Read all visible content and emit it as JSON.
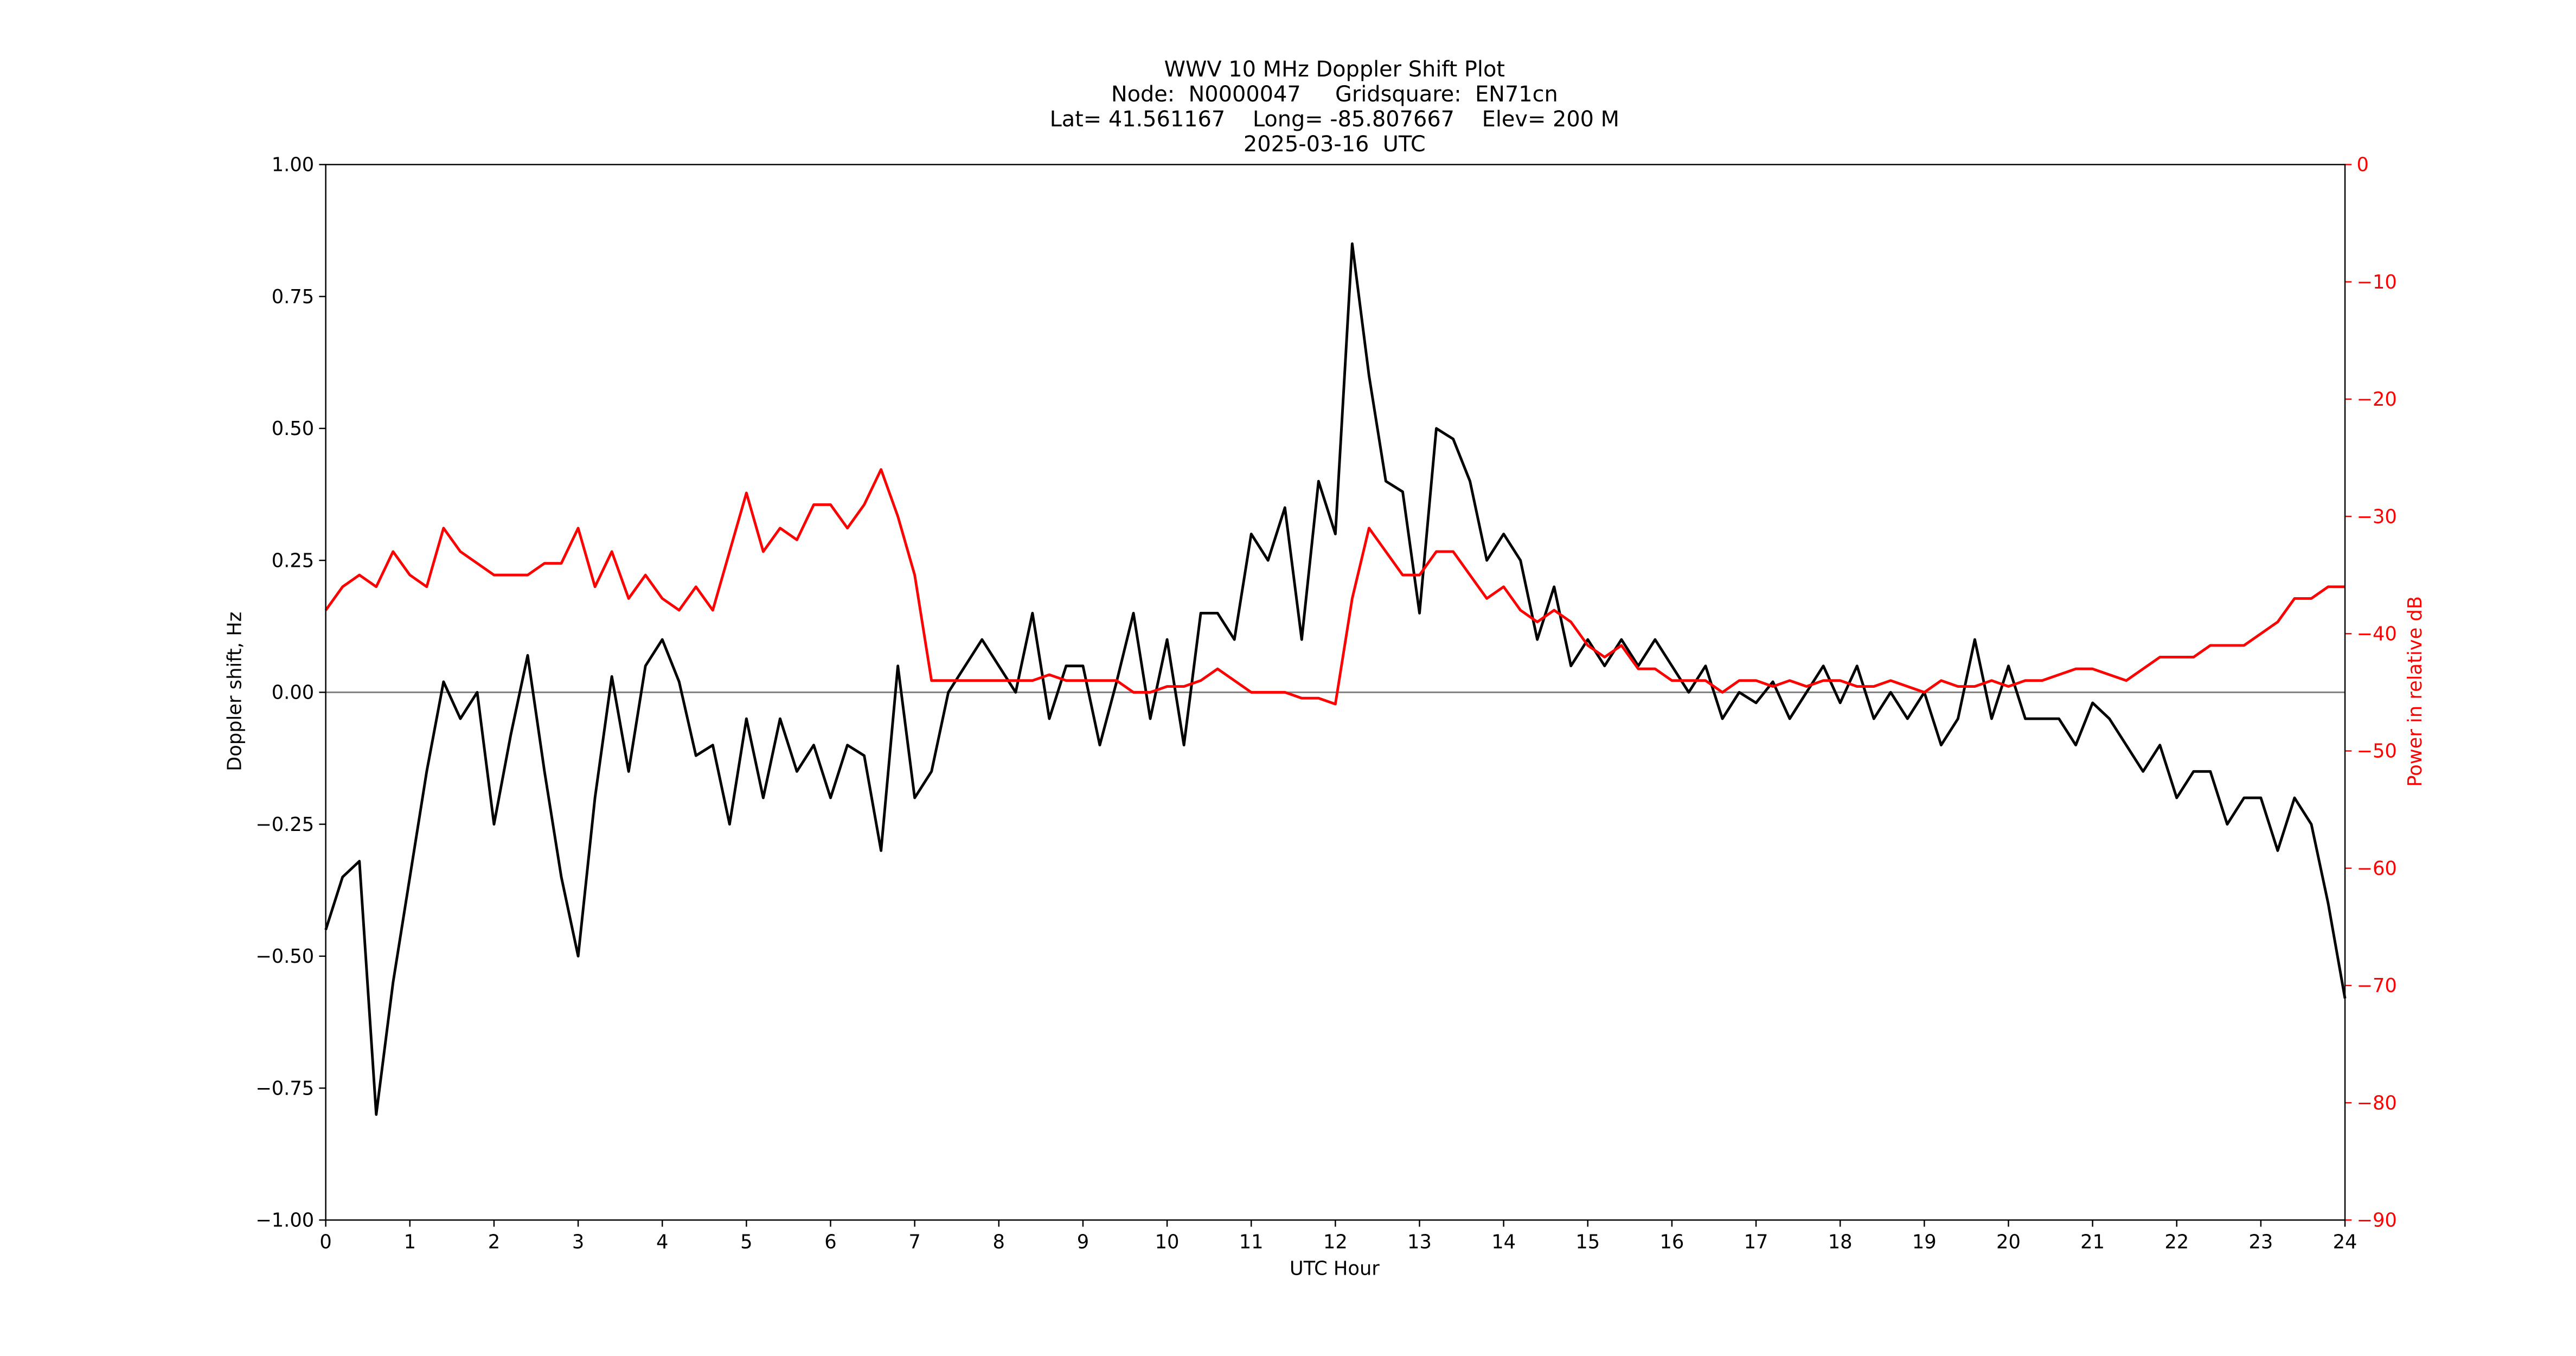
{
  "chart_data": {
    "type": "line",
    "title": [
      "WWV 10 MHz Doppler Shift Plot",
      "Node:  N0000047     Gridsquare:  EN71cn",
      "Lat= 41.561167    Long= -85.807667    Elev= 200 M",
      "2025-03-16  UTC"
    ],
    "x_label": "UTC Hour",
    "y_label": "Doppler shift, Hz",
    "y2_label": "Power in relative dB",
    "y2_color": "#ff0000",
    "xlim": [
      0,
      24
    ],
    "xticks": [
      0,
      1,
      2,
      3,
      4,
      5,
      6,
      7,
      8,
      9,
      10,
      11,
      12,
      13,
      14,
      15,
      16,
      17,
      18,
      19,
      20,
      21,
      22,
      23,
      24
    ],
    "ylim": [
      -1,
      1
    ],
    "yticks": [
      {
        "value": -1,
        "label": "−1.00"
      },
      {
        "value": -0.75,
        "label": "−0.75"
      },
      {
        "value": -0.5,
        "label": "−0.50"
      },
      {
        "value": -0.25,
        "label": "−0.25"
      },
      {
        "value": 0,
        "label": "0.00"
      },
      {
        "value": 0.25,
        "label": "0.25"
      },
      {
        "value": 0.5,
        "label": "0.50"
      },
      {
        "value": 0.75,
        "label": "0.75"
      },
      {
        "value": 1,
        "label": "1.00"
      }
    ],
    "y2lim": [
      -90,
      0
    ],
    "y2ticks": [
      {
        "value": -90,
        "label": "−90"
      },
      {
        "value": -80,
        "label": "−80"
      },
      {
        "value": -70,
        "label": "−70"
      },
      {
        "value": -60,
        "label": "−60"
      },
      {
        "value": -50,
        "label": "−50"
      },
      {
        "value": -40,
        "label": "−40"
      },
      {
        "value": -30,
        "label": "−30"
      },
      {
        "value": -20,
        "label": "−20"
      },
      {
        "value": -10,
        "label": "−10"
      },
      0
    ],
    "x": [
      0,
      0.2,
      0.4,
      0.6,
      0.8,
      1,
      1.2,
      1.4,
      1.6,
      1.8,
      2,
      2.2,
      2.4,
      2.6,
      2.8,
      3,
      3.2,
      3.4,
      3.6,
      3.8,
      4,
      4.2,
      4.4,
      4.6,
      4.8,
      5,
      5.2,
      5.4,
      5.6,
      5.8,
      6,
      6.2,
      6.4,
      6.6,
      6.8,
      7,
      7.2,
      7.4,
      7.6,
      7.8,
      8,
      8.2,
      8.4,
      8.6,
      8.8,
      9,
      9.2,
      9.4,
      9.6,
      9.8,
      10,
      10.2,
      10.4,
      10.6,
      10.8,
      11,
      11.2,
      11.4,
      11.6,
      11.8,
      12,
      12.2,
      12.4,
      12.6,
      12.8,
      13,
      13.2,
      13.4,
      13.6,
      13.8,
      14,
      14.2,
      14.4,
      14.6,
      14.8,
      15,
      15.2,
      15.4,
      15.6,
      15.8,
      16,
      16.2,
      16.4,
      16.6,
      16.8,
      17,
      17.2,
      17.4,
      17.6,
      17.8,
      18,
      18.2,
      18.4,
      18.6,
      18.8,
      19,
      19.2,
      19.4,
      19.6,
      19.8,
      20,
      20.2,
      20.4,
      20.6,
      20.8,
      21,
      21.2,
      21.4,
      21.6,
      21.8,
      22,
      22.2,
      22.4,
      22.6,
      22.8,
      23,
      23.2,
      23.4,
      23.6,
      23.8,
      24
    ],
    "series": [
      {
        "color": "#000000",
        "values": [
          -0.45,
          -0.35,
          -0.32,
          -0.8,
          -0.55,
          -0.35,
          -0.15,
          0.02,
          -0.05,
          0.0,
          -0.25,
          -0.08,
          0.07,
          -0.15,
          -0.35,
          -0.5,
          -0.2,
          0.03,
          -0.15,
          0.05,
          0.1,
          0.02,
          -0.12,
          -0.1,
          -0.25,
          -0.05,
          -0.2,
          -0.05,
          -0.15,
          -0.1,
          -0.2,
          -0.1,
          -0.12,
          -0.3,
          0.05,
          -0.2,
          -0.15,
          0.0,
          0.05,
          0.1,
          0.05,
          0.0,
          0.15,
          -0.05,
          0.05,
          0.05,
          -0.1,
          0.02,
          0.15,
          -0.05,
          0.1,
          -0.1,
          0.15,
          0.15,
          0.1,
          0.3,
          0.25,
          0.35,
          0.1,
          0.4,
          0.3,
          0.85,
          0.6,
          0.4,
          0.38,
          0.15,
          0.5,
          0.48,
          0.4,
          0.25,
          0.3,
          0.25,
          0.1,
          0.2,
          0.05,
          0.1,
          0.05,
          0.1,
          0.05,
          0.1,
          0.05,
          0.0,
          0.05,
          -0.05,
          0.0,
          -0.02,
          0.02,
          -0.05,
          0.0,
          0.05,
          -0.02,
          0.05,
          -0.05,
          0.0,
          -0.05,
          0.0,
          -0.1,
          -0.05,
          0.1,
          -0.05,
          0.05,
          -0.05,
          -0.05,
          -0.05,
          -0.1,
          -0.02,
          -0.05,
          -0.1,
          -0.15,
          -0.1,
          -0.2,
          -0.15,
          -0.15,
          -0.25,
          -0.2,
          -0.2,
          -0.3,
          -0.2,
          -0.25,
          -0.4,
          -0.58
        ]
      },
      {
        "color": "#ff0000",
        "axis": "y2",
        "values": [
          -38,
          -36,
          -35,
          -36,
          -33,
          -35,
          -36,
          -31,
          -33,
          -34,
          -35,
          -35,
          -35,
          -34,
          -34,
          -31,
          -36,
          -33,
          -37,
          -35,
          -37,
          -38,
          -36,
          -38,
          -33,
          -28,
          -33,
          -31,
          -32,
          -29,
          -29,
          -31,
          -29,
          -26,
          -30,
          -35,
          -44,
          -44,
          -44,
          -44,
          -44,
          -44,
          -44,
          -43.5,
          -44,
          -44,
          -44,
          -44,
          -45,
          -45,
          -44.5,
          -44.5,
          -44,
          -43,
          -44,
          -45,
          -45,
          -45,
          -45.5,
          -45.5,
          -46,
          -37,
          -31,
          -33,
          -35,
          -35,
          -33,
          -33,
          -35,
          -37,
          -36,
          -38,
          -39,
          -38,
          -39,
          -41,
          -42,
          -41,
          -43,
          -43,
          -44,
          -44,
          -44,
          -45,
          -44,
          -44,
          -44.5,
          -44,
          -44.5,
          -44,
          -44,
          -44.5,
          -44.5,
          -44,
          -44.5,
          -45,
          -44,
          -44.5,
          -44.5,
          -44,
          -44.5,
          -44,
          -44,
          -43.5,
          -43,
          -43,
          -43.5,
          -44,
          -43,
          -42,
          -42,
          -42,
          -41,
          -41,
          -41,
          -40,
          -39,
          -37,
          -37,
          -36,
          -36
        ]
      }
    ]
  }
}
